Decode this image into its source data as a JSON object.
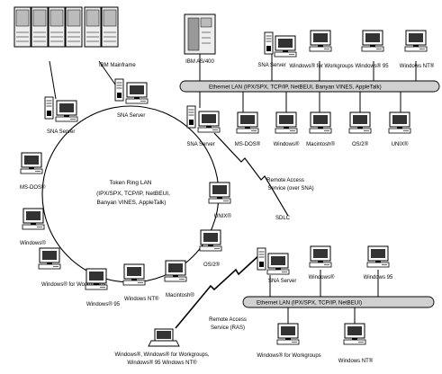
{
  "top_left": {
    "mainframe": "IBM Mainframe",
    "sna_server": "SNA Server",
    "pc_sna_server": "SNA Server"
  },
  "top_right": {
    "as400": "IBM AS/400",
    "sna_server": "SNA Server",
    "win_workgroups": "Windows® for Workgroups",
    "win95": "Windows® 95",
    "winnt": "Windows NT®",
    "ethernet": "Ethernet LAN (IPX/SPX, TCP/IP, NetBEUI, Banyan VINES, AppleTalk)",
    "row": [
      "SNA Server",
      "MS-DOS®",
      "Windows®",
      "Macintosh®",
      "OS/2®",
      "UNIX®"
    ]
  },
  "ring": {
    "title": "Token Ring LAN",
    "protocols_line1": "(IPX/SPX, TCP/IP, NetBEUI,",
    "protocols_line2": "Banyan VINES, AppleTalk)",
    "nodes": [
      "MS-DOS®",
      "Windows®",
      "Windows® for Workgroups",
      "Windows® 95",
      "Windows NT®",
      "Macintosh®",
      "OS/2®",
      "UNIX®"
    ]
  },
  "links": {
    "remote_sna_1": "Remote Access",
    "remote_sna_2": "Service (over SNA)",
    "sdlc": "SDLC",
    "remote_ras_1": "Remote Access",
    "remote_ras_2": "Service (RAS)"
  },
  "bottom_right": {
    "sna_server": "SNA Server",
    "ethernet": "Ethernet LAN (IPX/SPX, TCP/IP, NetBEUI)",
    "win_top_1": "Windows®",
    "win_top_2": "Windows 95",
    "wfw": "Windows® for Workgroups",
    "winnt": "Windows NT®"
  },
  "laptop": {
    "line1": "Windows®, Windows® for Workgroups,",
    "line2": "Windows® 95 Windows NT®"
  }
}
